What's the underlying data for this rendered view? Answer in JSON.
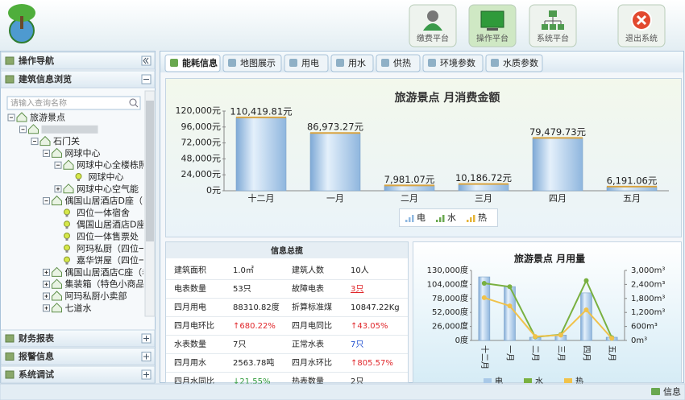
{
  "header": {
    "buttons": [
      "缴费平台",
      "操作平台",
      "系统平台",
      "退出系统"
    ],
    "active": 1
  },
  "sidebar": {
    "title": "操作导航",
    "section": "建筑信息浏览",
    "search_placeholder": "请输入查询名称",
    "tree": [
      {
        "label": "旅游景点",
        "children": [
          {
            "children": [
              {
                "label": "石门关",
                "children": [
                  {
                    "label": "网球中心",
                    "children": [
                      {
                        "label": "网球中心全楼栋照明",
                        "children": [
                          {
                            "label": "网球中心"
                          }
                        ]
                      },
                      {
                        "label": "网球中心空气能",
                        "children": []
                      }
                    ]
                  },
                  {
                    "label": "偶国山居酒店D座（四",
                    "children": [
                      {
                        "label": "四位一体宿舍"
                      },
                      {
                        "label": "偶国山居酒店D座"
                      },
                      {
                        "label": "四位一体售票处"
                      },
                      {
                        "label": "阿玛私厨（四位一"
                      },
                      {
                        "label": "嘉华饼屋（四位一"
                      }
                    ]
                  },
                  {
                    "label": "偶国山居酒店C座（老",
                    "children": []
                  },
                  {
                    "label": "集装箱（特色小商品）",
                    "children": []
                  },
                  {
                    "label": "阿玛私厨小卖部",
                    "children": []
                  },
                  {
                    "label": "七道水",
                    "children": []
                  }
                ]
              }
            ]
          }
        ]
      }
    ],
    "sections": [
      "财务报表",
      "报警信息",
      "系统调试"
    ]
  },
  "tabs": [
    "能耗信息",
    "地图展示",
    "用电",
    "用水",
    "供热",
    "环境参数",
    "水质参数"
  ],
  "active_tab": 0,
  "info": {
    "title": "信息总揽",
    "rows": [
      [
        "建筑面积",
        "1.0㎡",
        "建筑人数",
        "10人"
      ],
      [
        "电表数量",
        "53只",
        "故障电表",
        {
          "text": "3只",
          "color": "#e0262a"
        }
      ],
      [
        "四月用电",
        "88310.82度",
        "折算标准煤",
        "10847.22Kg"
      ],
      [
        "四月电环比",
        {
          "text": "↑680.22%",
          "color": "#e0262a"
        },
        "四月电同比",
        {
          "text": "↑43.05%",
          "color": "#e0262a"
        }
      ],
      [
        "水表数量",
        "7只",
        "正常水表",
        {
          "text": "7只",
          "color": "#1f4fd0"
        }
      ],
      [
        "四月用水",
        "2563.78吨",
        "四月水环比",
        {
          "text": "↑805.57%",
          "color": "#e0262a"
        }
      ],
      [
        "四月水同比",
        {
          "text": "↓21.55%",
          "color": "#2e9a3a"
        },
        "热表数量",
        "2只"
      ]
    ]
  },
  "chart_data": [
    {
      "type": "bar",
      "title": "旅游景点 月消费金额",
      "categories": [
        "十二月",
        "一月",
        "二月",
        "三月",
        "四月",
        "五月"
      ],
      "values": [
        110419.81,
        86973.27,
        7981.07,
        10186.72,
        79479.73,
        6191.06
      ],
      "value_labels": [
        "110,419.81元",
        "86,973.27元",
        "7,981.07元",
        "10,186.72元",
        "79,479.73元",
        "6,191.06元"
      ],
      "color": "#a9c9e8",
      "ylim": [
        0,
        120000
      ],
      "yticks": [
        {
          "value": 0,
          "label": "0元"
        },
        {
          "value": 24000,
          "label": "24,000元"
        },
        {
          "value": 48000,
          "label": "48,000元"
        },
        {
          "value": 72000,
          "label": "72,000元"
        },
        {
          "value": 96000,
          "label": "96,000元"
        },
        {
          "value": 120000,
          "label": "120,000元"
        }
      ],
      "legend": [
        {
          "name": "电",
          "color": "#8fb8e0"
        },
        {
          "name": "水",
          "color": "#6aa84f"
        },
        {
          "name": "热",
          "color": "#e5b53a"
        }
      ]
    },
    {
      "type": "combo",
      "title": "旅游景点 月用量",
      "categories": [
        "十二月",
        "一月",
        "二月",
        "三月",
        "四月",
        "五月"
      ],
      "series": [
        {
          "name": "电",
          "kind": "bar",
          "color": "#a9c9e8",
          "values": [
            118000,
            100000,
            6000,
            10000,
            88310.82,
            6000
          ]
        },
        {
          "name": "水",
          "kind": "line",
          "axis": "y2",
          "color": "#79b040",
          "values": [
            2450,
            2300,
            150,
            250,
            2563.78,
            120
          ]
        },
        {
          "name": "热",
          "kind": "line",
          "axis": "y2",
          "color": "#f0c24a",
          "values": [
            1830,
            1480,
            170,
            230,
            1310,
            90
          ]
        }
      ],
      "ylim": [
        0,
        130000
      ],
      "yticks": [
        {
          "value": 0,
          "label": "0度"
        },
        {
          "value": 26000,
          "label": "26,000度"
        },
        {
          "value": 52000,
          "label": "52,000度"
        },
        {
          "value": 78000,
          "label": "78,000度"
        },
        {
          "value": 104000,
          "label": "104,000度"
        },
        {
          "value": 130000,
          "label": "130,000度"
        }
      ],
      "y2lim": [
        0,
        3000
      ],
      "y2ticks": [
        {
          "value": 0,
          "label": "0m³"
        },
        {
          "value": 600,
          "label": "600m³"
        },
        {
          "value": 1200,
          "label": "1,200m³"
        },
        {
          "value": 1800,
          "label": "1,800m³"
        },
        {
          "value": 2400,
          "label": "2,400m³"
        },
        {
          "value": 3000,
          "label": "3,000m³"
        }
      ]
    }
  ],
  "footer": {
    "status": "信息"
  }
}
